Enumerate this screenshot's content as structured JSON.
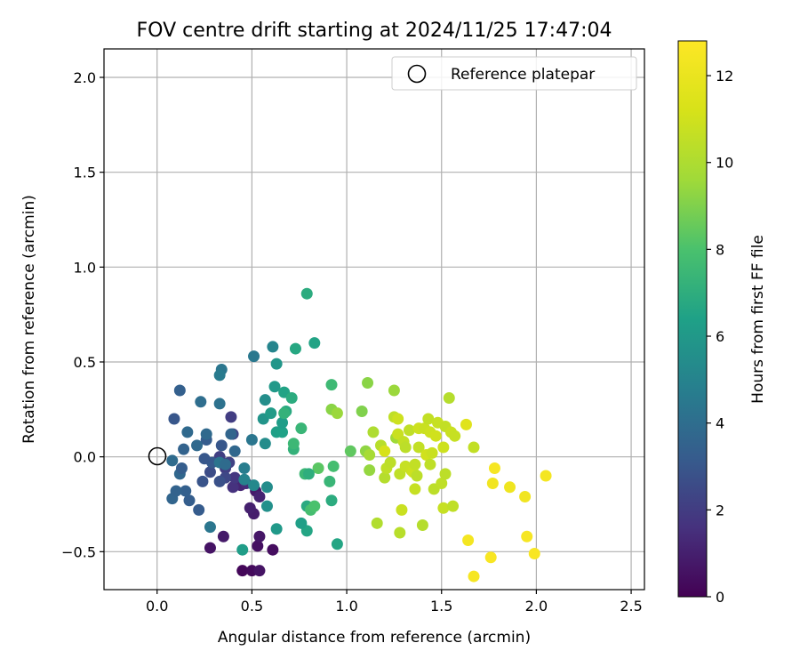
{
  "chart_data": {
    "type": "scatter",
    "title": "FOV centre drift starting at 2024/11/25 17:47:04",
    "xlabel": "Angular distance from reference (arcmin)",
    "ylabel": "Rotation from reference (arcmin)",
    "xlim": [
      -0.28,
      2.57
    ],
    "ylim": [
      -0.7,
      2.15
    ],
    "xticks": [
      0.0,
      0.5,
      1.0,
      1.5,
      2.0,
      2.5
    ],
    "xtick_labels": [
      "0.0",
      "0.5",
      "1.0",
      "1.5",
      "2.0",
      "2.5"
    ],
    "yticks": [
      -0.5,
      0.0,
      0.5,
      1.0,
      1.5,
      2.0
    ],
    "ytick_labels": [
      "−0.5",
      "0.0",
      "0.5",
      "1.0",
      "1.5",
      "2.0"
    ],
    "grid": true,
    "legend": {
      "position": "top-right",
      "entries": [
        "Reference platepar"
      ]
    },
    "reference_point": {
      "x": 0.0,
      "y": 0.0
    },
    "colorbar": {
      "label": "Hours from first FF file",
      "range": [
        0,
        12.8
      ],
      "ticks": [
        0,
        2,
        4,
        6,
        8,
        10,
        12
      ],
      "tick_labels": [
        "0",
        "2",
        "4",
        "6",
        "8",
        "10",
        "12"
      ],
      "colormap": "viridis"
    },
    "points": [
      [
        0.45,
        -0.6,
        0.2
      ],
      [
        0.5,
        -0.6,
        0.3
      ],
      [
        0.54,
        -0.6,
        0.6
      ],
      [
        0.61,
        -0.49,
        0.4
      ],
      [
        0.53,
        -0.47,
        0.5
      ],
      [
        0.54,
        -0.42,
        0.7
      ],
      [
        0.28,
        -0.48,
        0.6
      ],
      [
        0.35,
        -0.42,
        0.8
      ],
      [
        0.51,
        -0.3,
        0.9
      ],
      [
        0.49,
        -0.27,
        1.0
      ],
      [
        0.44,
        -0.15,
        1.2
      ],
      [
        0.52,
        -0.18,
        0.8
      ],
      [
        0.54,
        -0.21,
        1.1
      ],
      [
        0.47,
        -0.14,
        1.4
      ],
      [
        0.4,
        -0.16,
        1.6
      ],
      [
        0.41,
        -0.11,
        1.8
      ],
      [
        0.36,
        -0.06,
        2.0
      ],
      [
        0.33,
        0.0,
        2.1
      ],
      [
        0.38,
        -0.03,
        2.2
      ],
      [
        0.39,
        0.21,
        2.0
      ],
      [
        0.4,
        0.12,
        2.3
      ],
      [
        0.36,
        -0.11,
        2.4
      ],
      [
        0.28,
        -0.08,
        2.6
      ],
      [
        0.33,
        -0.13,
        2.8
      ],
      [
        0.24,
        -0.13,
        2.9
      ],
      [
        0.34,
        0.06,
        3.0
      ],
      [
        0.29,
        -0.03,
        3.1
      ],
      [
        0.26,
        0.09,
        3.2
      ],
      [
        0.25,
        -0.01,
        3.0
      ],
      [
        0.17,
        -0.23,
        3.3
      ],
      [
        0.22,
        -0.28,
        3.2
      ],
      [
        0.15,
        -0.18,
        3.4
      ],
      [
        0.08,
        -0.22,
        3.6
      ],
      [
        0.1,
        -0.18,
        3.5
      ],
      [
        0.12,
        -0.09,
        3.7
      ],
      [
        0.13,
        -0.06,
        3.3
      ],
      [
        0.14,
        0.04,
        3.5
      ],
      [
        0.16,
        0.13,
        3.8
      ],
      [
        0.21,
        0.06,
        3.8
      ],
      [
        0.08,
        -0.02,
        3.9
      ],
      [
        0.12,
        0.35,
        3.4
      ],
      [
        0.09,
        0.2,
        3.0
      ],
      [
        0.23,
        0.29,
        4.0
      ],
      [
        0.26,
        0.12,
        3.8
      ],
      [
        0.33,
        0.28,
        4.2
      ],
      [
        0.28,
        -0.37,
        4.4
      ],
      [
        0.33,
        -0.03,
        4.3
      ],
      [
        0.36,
        -0.04,
        3.9
      ],
      [
        0.39,
        0.12,
        3.6
      ],
      [
        0.41,
        0.03,
        3.7
      ],
      [
        0.34,
        0.46,
        4.4
      ],
      [
        0.33,
        0.43,
        4.6
      ],
      [
        0.5,
        0.09,
        4.4
      ],
      [
        0.51,
        0.53,
        4.5
      ],
      [
        0.46,
        -0.06,
        4.7
      ],
      [
        0.45,
        -0.49,
        6.2
      ],
      [
        0.46,
        -0.12,
        5.0
      ],
      [
        0.51,
        -0.15,
        5.2
      ],
      [
        0.58,
        -0.16,
        5.4
      ],
      [
        0.58,
        -0.26,
        5.6
      ],
      [
        0.57,
        0.07,
        5.4
      ],
      [
        0.61,
        0.58,
        5.1
      ],
      [
        0.63,
        -0.38,
        6.0
      ],
      [
        0.63,
        0.49,
        5.9
      ],
      [
        0.56,
        0.2,
        5.8
      ],
      [
        0.57,
        0.3,
        5.5
      ],
      [
        0.62,
        0.37,
        6.0
      ],
      [
        0.63,
        0.13,
        6.3
      ],
      [
        0.6,
        0.23,
        6.1
      ],
      [
        0.66,
        0.13,
        6.4
      ],
      [
        0.67,
        0.34,
        6.5
      ],
      [
        0.68,
        0.24,
        6.8
      ],
      [
        0.66,
        0.18,
        6.2
      ],
      [
        0.71,
        0.31,
        6.9
      ],
      [
        0.67,
        0.23,
        7.2
      ],
      [
        0.72,
        0.04,
        7.2
      ],
      [
        0.72,
        0.07,
        7.5
      ],
      [
        0.76,
        0.15,
        7.4
      ],
      [
        0.73,
        0.57,
        6.7
      ],
      [
        0.83,
        0.6,
        6.5
      ],
      [
        0.79,
        0.86,
        6.9
      ],
      [
        0.78,
        -0.09,
        7.5
      ],
      [
        0.79,
        -0.26,
        6.8
      ],
      [
        0.79,
        -0.39,
        6.6
      ],
      [
        0.76,
        -0.35,
        6.3
      ],
      [
        0.81,
        -0.28,
        7.8
      ],
      [
        0.83,
        -0.26,
        8.0
      ],
      [
        0.85,
        -0.06,
        8.3
      ],
      [
        0.8,
        -0.09,
        7.0
      ],
      [
        0.91,
        -0.13,
        7.4
      ],
      [
        0.93,
        -0.05,
        7.8
      ],
      [
        0.92,
        0.38,
        7.6
      ],
      [
        0.92,
        -0.23,
        6.9
      ],
      [
        0.95,
        -0.46,
        6.6
      ],
      [
        0.92,
        0.25,
        9.2
      ],
      [
        0.95,
        0.23,
        9.5
      ],
      [
        1.02,
        0.03,
        8.4
      ],
      [
        1.08,
        0.24,
        9.0
      ],
      [
        1.1,
        0.03,
        9.3
      ],
      [
        1.11,
        0.39,
        9.2
      ],
      [
        1.12,
        -0.07,
        9.4
      ],
      [
        1.12,
        0.01,
        9.8
      ],
      [
        1.14,
        0.13,
        10.0
      ],
      [
        1.16,
        -0.35,
        10.1
      ],
      [
        1.18,
        0.06,
        10.3
      ],
      [
        1.2,
        -0.11,
        10.2
      ],
      [
        1.2,
        0.03,
        11.2
      ],
      [
        1.21,
        -0.06,
        10.5
      ],
      [
        1.23,
        -0.03,
        10.4
      ],
      [
        1.25,
        0.35,
        9.5
      ],
      [
        1.25,
        0.21,
        10.5
      ],
      [
        1.26,
        0.1,
        9.6
      ],
      [
        1.27,
        0.12,
        10.8
      ],
      [
        1.27,
        0.2,
        10.9
      ],
      [
        1.28,
        -0.4,
        10.3
      ],
      [
        1.28,
        -0.09,
        10.5
      ],
      [
        1.29,
        -0.28,
        10.8
      ],
      [
        1.3,
        0.08,
        10.6
      ],
      [
        1.31,
        -0.05,
        10.7
      ],
      [
        1.31,
        0.05,
        10.4
      ],
      [
        1.33,
        0.14,
        10.5
      ],
      [
        1.34,
        -0.07,
        10.8
      ],
      [
        1.35,
        -0.08,
        10.9
      ],
      [
        1.36,
        -0.04,
        10.6
      ],
      [
        1.37,
        -0.1,
        10.4
      ],
      [
        1.36,
        -0.17,
        10.7
      ],
      [
        1.38,
        0.15,
        10.9
      ],
      [
        1.38,
        0.05,
        10.6
      ],
      [
        1.4,
        -0.36,
        10.2
      ],
      [
        1.41,
        0.15,
        10.8
      ],
      [
        1.42,
        0.01,
        11.0
      ],
      [
        1.43,
        0.2,
        10.6
      ],
      [
        1.44,
        0.13,
        10.9
      ],
      [
        1.44,
        -0.04,
        10.5
      ],
      [
        1.45,
        0.02,
        10.8
      ],
      [
        1.46,
        -0.17,
        10.4
      ],
      [
        1.47,
        0.11,
        11.0
      ],
      [
        1.48,
        0.18,
        10.7
      ],
      [
        1.5,
        -0.14,
        10.5
      ],
      [
        1.51,
        0.05,
        10.9
      ],
      [
        1.51,
        -0.27,
        10.7
      ],
      [
        1.52,
        -0.09,
        10.4
      ],
      [
        1.52,
        0.16,
        10.6
      ],
      [
        1.54,
        0.31,
        10.2
      ],
      [
        1.55,
        0.13,
        10.8
      ],
      [
        1.56,
        -0.26,
        10.5
      ],
      [
        1.57,
        0.11,
        10.7
      ],
      [
        1.63,
        0.17,
        11.6
      ],
      [
        1.64,
        -0.44,
        12.4
      ],
      [
        1.67,
        0.05,
        10.6
      ],
      [
        1.67,
        -0.63,
        12.5
      ],
      [
        1.76,
        -0.53,
        12.6
      ],
      [
        1.77,
        -0.14,
        12.3
      ],
      [
        1.78,
        -0.06,
        12.5
      ],
      [
        1.86,
        -0.16,
        12.2
      ],
      [
        1.94,
        -0.21,
        12.3
      ],
      [
        1.95,
        -0.42,
        12.5
      ],
      [
        1.99,
        -0.51,
        12.6
      ],
      [
        2.05,
        -0.1,
        12.4
      ]
    ]
  }
}
